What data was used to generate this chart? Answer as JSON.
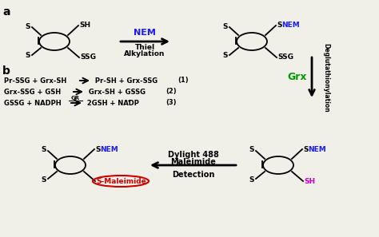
{
  "bg_color": "#f0efe8",
  "nem_color": "#1a1aff",
  "grx_color": "#009900",
  "sh_color": "#cc00cc",
  "smaleimide_color": "#cc0000",
  "label_a": "a",
  "label_b": "b",
  "nem_label": "NEM",
  "thiol_line1": "Thiel",
  "thiol_line2": "Alkylation",
  "grx_label": "Grx",
  "deglut_label": "Deglutathionylation",
  "dylight_line1": "Dylight 488",
  "dylight_line2": "Maleimide",
  "detection_label": "Detection",
  "gr_label": "GR",
  "eq1_left": "Pr-SSG + Grx-SH ",
  "eq1_right": " Pr-SH + Grx-SSG",
  "eq1_num": "(1)",
  "eq2_left": "Grx-SSG + GSH ",
  "eq2_right": " Grx-SH + GSSG",
  "eq2_num": "(2)",
  "eq3_left": "GSSG + NADPH ",
  "eq3_right": " 2GSH + NADP",
  "eq3_plus": "+",
  "eq3_num": "(3)"
}
